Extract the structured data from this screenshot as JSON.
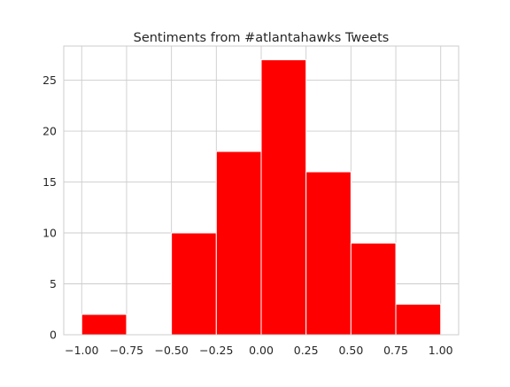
{
  "chart_data": {
    "type": "bar",
    "title": "Sentiments from #atlantahawks Tweets",
    "xlabel": "",
    "ylabel": "",
    "bin_edges": [
      -1.0,
      -0.75,
      -0.5,
      -0.25,
      0.0,
      0.25,
      0.5,
      0.75,
      1.0
    ],
    "values": [
      2,
      0,
      10,
      18,
      27,
      16,
      9,
      3
    ],
    "xlim": [
      -1.1,
      1.1
    ],
    "ylim": [
      0,
      28.35
    ],
    "xticks": [
      -1.0,
      -0.75,
      -0.5,
      -0.25,
      0.0,
      0.25,
      0.5,
      0.75,
      1.0
    ],
    "xtick_labels": [
      "−1.00",
      "−0.75",
      "−0.50",
      "−0.25",
      "0.00",
      "0.25",
      "0.50",
      "0.75",
      "1.00"
    ],
    "yticks": [
      0,
      5,
      10,
      15,
      20,
      25
    ],
    "ytick_labels": [
      "0",
      "5",
      "10",
      "15",
      "20",
      "25"
    ],
    "grid": true,
    "bar_color": "#ff0000",
    "grid_color": "#cccccc",
    "axes_edge_color": "#cccccc"
  }
}
